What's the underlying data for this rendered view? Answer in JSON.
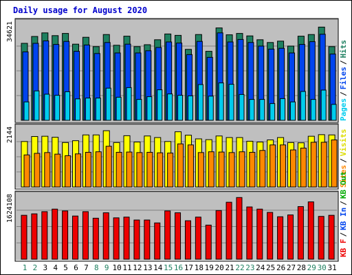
{
  "title": "Daily usage for August 2020",
  "colors": {
    "background": "#ffffff",
    "frame": "#bfbfbf",
    "title": "#0000cc",
    "hits": "#1e8060",
    "files": "#0044ee",
    "pages": "#00ccee",
    "visits": "#ffff00",
    "sites": "#ff8800",
    "kb_in": "#33aa33",
    "kb_out": "#00aa00",
    "kb_f": "#ee0000",
    "weekend_day": "#1e8060",
    "weekday": "#000000"
  },
  "chart_data": [
    {
      "type": "bar",
      "panel": "hits-files-pages",
      "title": "Daily usage for August 2020",
      "ytick_label": "34621",
      "ylim": [
        0,
        36000
      ],
      "categories": [
        "1",
        "2",
        "3",
        "4",
        "5",
        "6",
        "7",
        "8",
        "9",
        "10",
        "11",
        "12",
        "13",
        "14",
        "15",
        "16",
        "17",
        "18",
        "19",
        "20",
        "21",
        "22",
        "23",
        "24",
        "25",
        "26",
        "27",
        "28",
        "29",
        "30",
        "31"
      ],
      "legend": [
        "Hits",
        "Files",
        "Pages"
      ],
      "series": [
        {
          "name": "Hits",
          "values": [
            28000,
            30500,
            31800,
            30800,
            31600,
            27700,
            30200,
            26800,
            31200,
            27300,
            30600,
            26800,
            27500,
            29300,
            31400,
            30900,
            25800,
            31200,
            25100,
            33600,
            31100,
            31600,
            30700,
            29300,
            28300,
            28800,
            27000,
            30600,
            31200,
            33900,
            26800
          ]
        },
        {
          "name": "Files",
          "values": [
            24900,
            28000,
            28900,
            27600,
            28700,
            25100,
            27400,
            24300,
            28300,
            24500,
            27700,
            24500,
            25300,
            26500,
            28500,
            28100,
            23900,
            28700,
            22900,
            31800,
            28500,
            29400,
            28300,
            27000,
            25900,
            26200,
            24500,
            27600,
            28600,
            31300,
            24100
          ]
        },
        {
          "name": "Pages",
          "values": [
            6700,
            10700,
            9500,
            9100,
            10400,
            7800,
            8100,
            8100,
            11700,
            8400,
            11900,
            7600,
            8600,
            11100,
            9600,
            9100,
            8900,
            13000,
            8800,
            13600,
            13100,
            9400,
            7600,
            7600,
            6100,
            7900,
            6700,
            10500,
            7600,
            11000,
            5800
          ]
        }
      ]
    },
    {
      "type": "bar",
      "panel": "visits-sites",
      "ytick_label": "2144",
      "ylim": [
        0,
        2300
      ],
      "categories": [
        "1",
        "2",
        "3",
        "4",
        "5",
        "6",
        "7",
        "8",
        "9",
        "10",
        "11",
        "12",
        "13",
        "14",
        "15",
        "16",
        "17",
        "18",
        "19",
        "20",
        "21",
        "22",
        "23",
        "24",
        "25",
        "26",
        "27",
        "28",
        "29",
        "30",
        "31"
      ],
      "legend": [
        "Visits",
        "Sites"
      ],
      "series": [
        {
          "name": "Visits",
          "values": [
            1730,
            1920,
            1930,
            1890,
            1690,
            1760,
            1980,
            1980,
            2140,
            1690,
            1950,
            1710,
            1940,
            1880,
            1730,
            2100,
            1970,
            1830,
            1800,
            1940,
            1880,
            1880,
            1740,
            1710,
            1790,
            1880,
            1690,
            1680,
            1930,
            1990,
            1980
          ]
        },
        {
          "name": "Sites",
          "values": [
            1220,
            1280,
            1310,
            1250,
            1190,
            1260,
            1320,
            1340,
            1550,
            1320,
            1330,
            1310,
            1320,
            1300,
            1290,
            1640,
            1600,
            1310,
            1340,
            1330,
            1310,
            1340,
            1320,
            1390,
            1600,
            1600,
            1410,
            1480,
            1700,
            1700,
            1790
          ]
        }
      ]
    },
    {
      "type": "bar",
      "panel": "kbytes",
      "ytick_label": "1624108",
      "ylim": [
        0,
        1800000
      ],
      "categories": [
        "1",
        "2",
        "3",
        "4",
        "5",
        "6",
        "7",
        "8",
        "9",
        "10",
        "11",
        "12",
        "13",
        "14",
        "15",
        "16",
        "17",
        "18",
        "19",
        "20",
        "21",
        "22",
        "23",
        "24",
        "25",
        "26",
        "27",
        "28",
        "29",
        "30",
        "31"
      ],
      "legend": [
        "KB F",
        "KB In",
        "KB Out"
      ],
      "series": [
        {
          "name": "KB F",
          "values": [
            1210000,
            1250000,
            1310000,
            1380000,
            1330000,
            1190000,
            1310000,
            1130000,
            1280000,
            1140000,
            1160000,
            1080000,
            1080000,
            1000000,
            1330000,
            1280000,
            1060000,
            1160000,
            940000,
            1340000,
            1570000,
            1700000,
            1440000,
            1380000,
            1290000,
            1170000,
            1220000,
            1450000,
            1580000,
            1180000,
            1210000
          ]
        }
      ]
    }
  ],
  "axis_labels": {
    "panel1": {
      "hits": "Hits",
      "files": "Files",
      "pages": "Pages",
      "sep": "/"
    },
    "panel2": {
      "visits": "Visits",
      "sites": "Sites",
      "sep": "/"
    },
    "panel3": {
      "kb_f": "KB F",
      "kb_in": "KB In",
      "kb_out": "KB Out",
      "sep": "/"
    }
  },
  "weekend_days": [
    "1",
    "2",
    "8",
    "9",
    "15",
    "16",
    "22",
    "23",
    "29",
    "30"
  ]
}
